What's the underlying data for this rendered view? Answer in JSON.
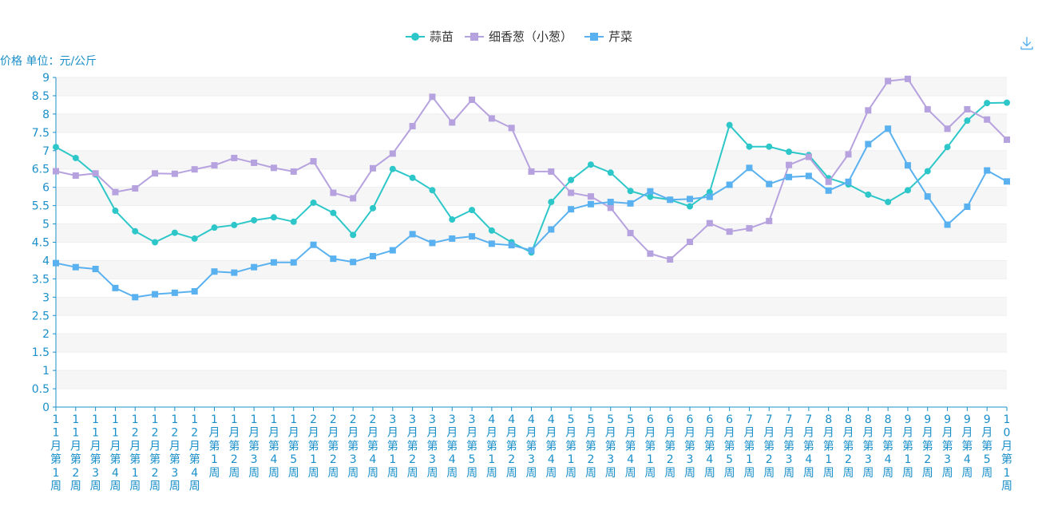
{
  "chart_data": {
    "type": "line",
    "ylabel": "价格 单位：元/公斤",
    "ylim": [
      0,
      9
    ],
    "yticks": [
      "0",
      "0.5",
      "1",
      "1.5",
      "2",
      "2.5",
      "3",
      "3.5",
      "4",
      "4.5",
      "5",
      "5.5",
      "6",
      "6.5",
      "7",
      "7.5",
      "8",
      "8.5",
      "9"
    ],
    "grid": "horizontal-bands",
    "legend_position": "top-center",
    "categories": [
      "11月第1周",
      "11月第2周",
      "11月第3周",
      "11月第4周",
      "12月第1周",
      "12月第2周",
      "12月第3周",
      "12月第4周",
      "1月第1周",
      "1月第2周",
      "1月第3周",
      "1月第4周",
      "1月第5周",
      "2月第1周",
      "2月第2周",
      "2月第3周",
      "2月第4周",
      "3月第1周",
      "3月第2周",
      "3月第3周",
      "3月第4周",
      "3月第5周",
      "4月第1周",
      "4月第2周",
      "4月第3周",
      "4月第4周",
      "5月第1周",
      "5月第2周",
      "5月第3周",
      "5月第4周",
      "6月第1周",
      "6月第2周",
      "6月第3周",
      "6月第4周",
      "6月第5周",
      "7月第1周",
      "7月第2周",
      "7月第3周",
      "7月第4周",
      "8月第1周",
      "8月第2周",
      "8月第3周",
      "8月第4周",
      "9月第1周",
      "9月第2周",
      "9月第3周",
      "9月第4周",
      "9月第5周",
      "10月第1周"
    ],
    "series": [
      {
        "name": "蒜苗",
        "color": "#2ec7c9",
        "marker": "circle",
        "values": [
          7.1,
          6.8,
          6.35,
          5.36,
          4.8,
          4.5,
          4.76,
          4.6,
          4.9,
          4.97,
          5.1,
          5.18,
          5.06,
          5.58,
          5.3,
          4.7,
          5.43,
          6.5,
          6.26,
          5.92,
          5.12,
          5.38,
          4.82,
          4.5,
          4.22,
          5.6,
          6.2,
          6.62,
          6.4,
          5.9,
          5.74,
          5.66,
          5.48,
          5.87,
          7.7,
          7.11,
          7.11,
          6.97,
          6.88,
          6.25,
          6.08,
          5.8,
          5.6,
          5.92,
          6.44,
          7.1,
          7.82,
          8.3,
          8.31
        ]
      },
      {
        "name": "细香葱（小葱）",
        "color": "#b6a2de",
        "marker": "square",
        "values": [
          6.44,
          6.32,
          6.38,
          5.87,
          5.97,
          6.38,
          6.37,
          6.49,
          6.6,
          6.8,
          6.67,
          6.53,
          6.43,
          6.71,
          5.85,
          5.7,
          6.52,
          6.92,
          7.67,
          8.47,
          7.77,
          8.39,
          7.88,
          7.62,
          6.43,
          6.43,
          5.85,
          5.75,
          5.44,
          4.75,
          4.19,
          4.03,
          4.51,
          5.02,
          4.79,
          4.88,
          5.08,
          6.61,
          6.83,
          6.15,
          6.9,
          8.1,
          8.9,
          8.96,
          8.13,
          7.6,
          8.13,
          7.85,
          7.3
        ]
      },
      {
        "name": "芹菜",
        "color": "#5ab1ef",
        "marker": "square",
        "values": [
          3.93,
          3.82,
          3.77,
          3.25,
          3.0,
          3.08,
          3.12,
          3.16,
          3.7,
          3.67,
          3.82,
          3.95,
          3.95,
          4.43,
          4.05,
          3.96,
          4.12,
          4.28,
          4.72,
          4.48,
          4.6,
          4.66,
          4.46,
          4.42,
          4.28,
          4.85,
          5.4,
          5.54,
          5.6,
          5.56,
          5.89,
          5.66,
          5.68,
          5.74,
          6.07,
          6.53,
          6.09,
          6.28,
          6.31,
          5.91,
          6.15,
          7.18,
          7.6,
          6.6,
          5.75,
          4.98,
          5.47,
          6.46,
          6.16
        ]
      }
    ]
  }
}
